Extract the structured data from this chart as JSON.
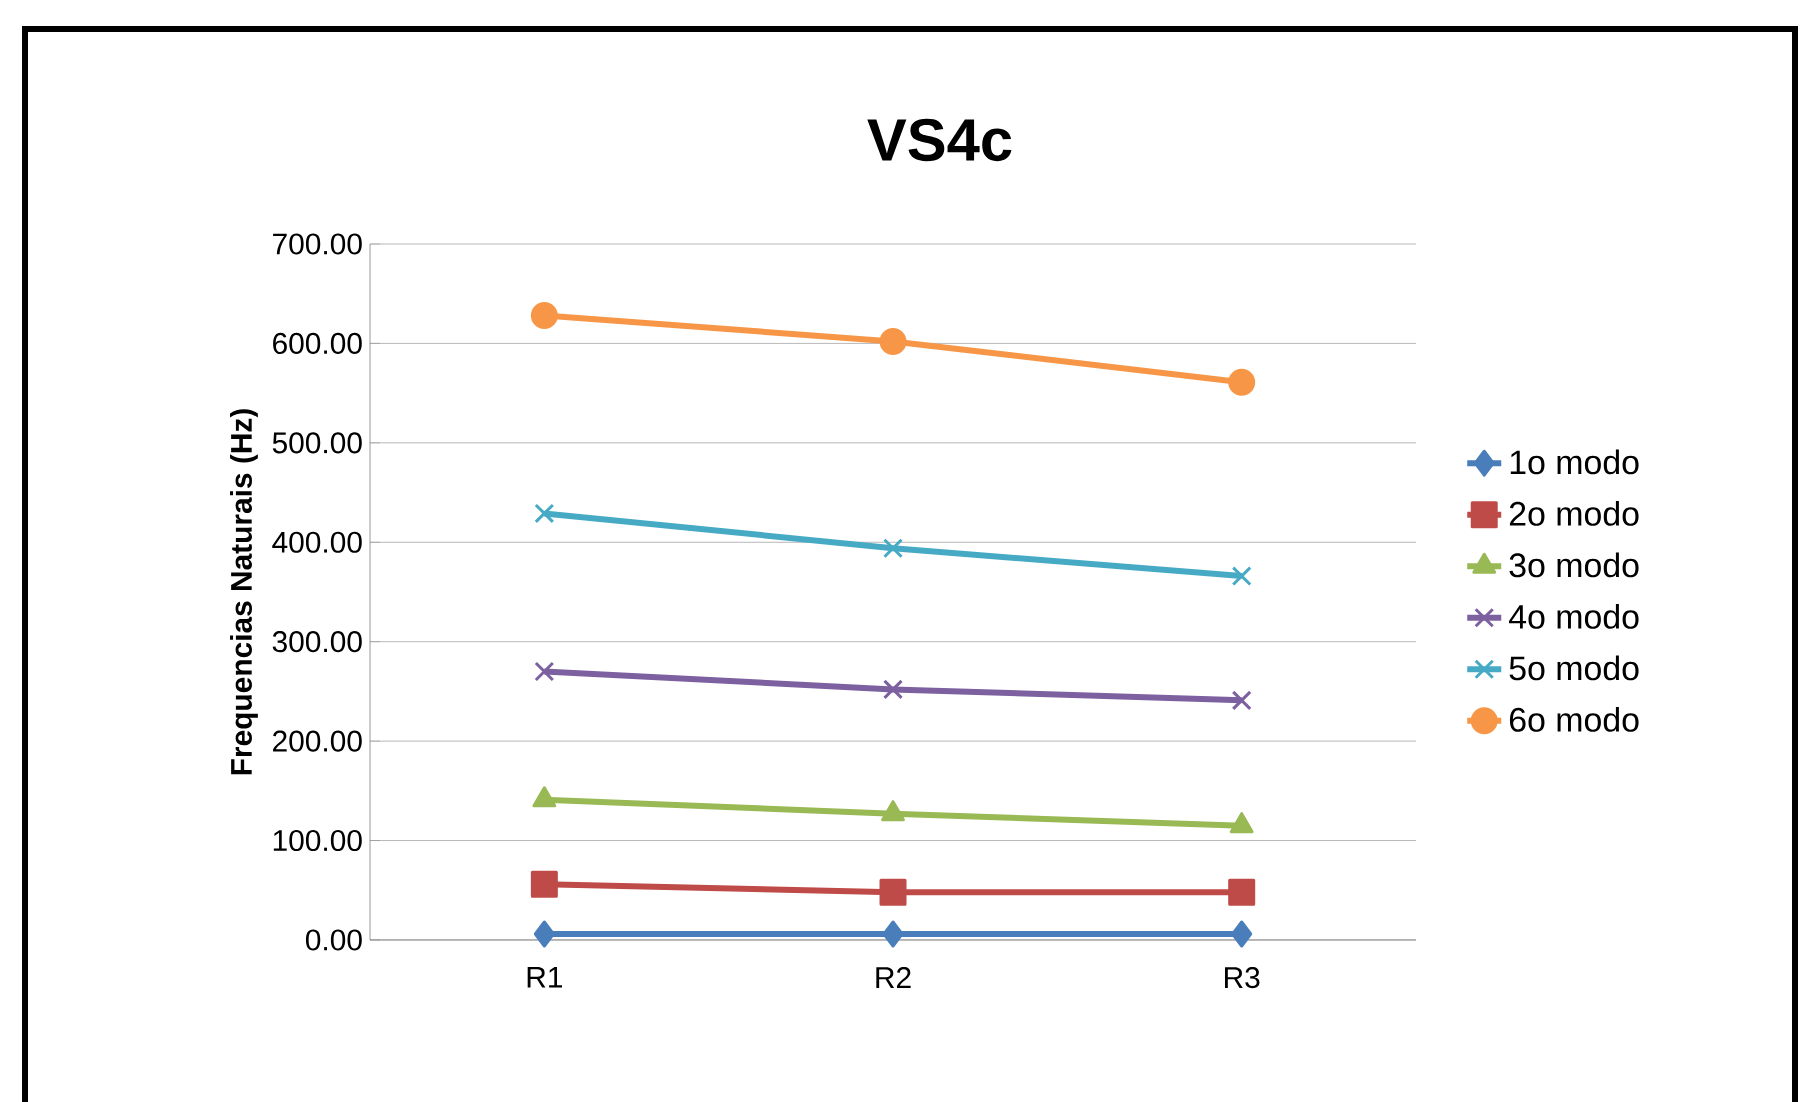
{
  "chart_data": {
    "type": "line",
    "title": "VS4c",
    "ylabel": "Frequencias Naturais (Hz)",
    "categories": [
      "R1",
      "R2",
      "R3"
    ],
    "series": [
      {
        "name": "1o modo",
        "color": "#4a7ebb",
        "marker": "diamond",
        "values": [
          6,
          6,
          6
        ]
      },
      {
        "name": "2o modo",
        "color": "#be4b48",
        "marker": "square",
        "values": [
          56,
          48,
          48
        ]
      },
      {
        "name": "3o modo",
        "color": "#98b954",
        "marker": "triangle",
        "values": [
          141,
          127,
          115
        ]
      },
      {
        "name": "4o modo",
        "color": "#7d60a0",
        "marker": "cross",
        "values": [
          270,
          252,
          241
        ]
      },
      {
        "name": "5o modo",
        "color": "#46aac5",
        "marker": "cross",
        "values": [
          429,
          394,
          366
        ]
      },
      {
        "name": "6o modo",
        "color": "#f79646",
        "marker": "circle",
        "values": [
          628,
          602,
          561
        ]
      }
    ],
    "ylim": [
      0,
      700
    ],
    "yticks": [
      {
        "value": 0,
        "label": "0.00"
      },
      {
        "value": 100,
        "label": "100.00"
      },
      {
        "value": 200,
        "label": "200.00"
      },
      {
        "value": 300,
        "label": "300.00"
      },
      {
        "value": 400,
        "label": "400.00"
      },
      {
        "value": 500,
        "label": "500.00"
      },
      {
        "value": 600,
        "label": "600.00"
      },
      {
        "value": 700,
        "label": "700.00"
      }
    ],
    "grid": "y",
    "legend": "right",
    "line_style": "solid"
  }
}
